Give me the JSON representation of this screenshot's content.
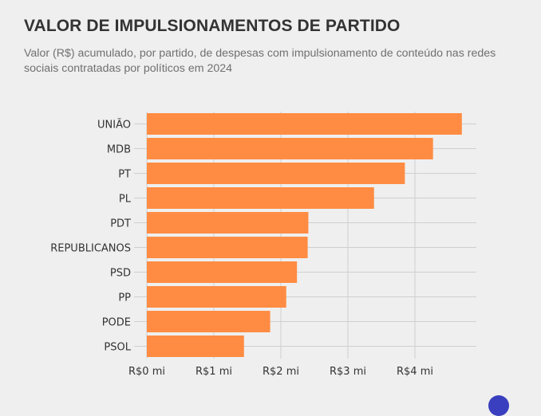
{
  "title": "VALOR DE IMPULSIONAMENTOS DE PARTIDO",
  "subtitle": "Valor (R$) acumulado, por partido, de despesas com impulsionamento de conteúdo nas redes sociais contratadas por políticos em 2024",
  "colors": {
    "bar": "#ff8c42",
    "grid": "#cfcfcf",
    "background": "#efefef",
    "text": "#333333"
  },
  "chart_data": {
    "type": "bar",
    "orientation": "horizontal",
    "title": "VALOR DE IMPULSIONAMENTOS DE PARTIDO",
    "categories": [
      "UNIÃO",
      "MDB",
      "PT",
      "PL",
      "PDT",
      "REPUBLICANOS",
      "PSD",
      "PP",
      "PODE",
      "PSOL"
    ],
    "values": [
      4.7,
      4.27,
      3.85,
      3.39,
      2.41,
      2.4,
      2.24,
      2.08,
      1.84,
      1.45
    ],
    "unit": "R$ milhões",
    "xlim": [
      0,
      5
    ],
    "ticks": [
      0,
      1,
      2,
      3,
      4
    ],
    "tick_labels": [
      "R$0 mi",
      "R$1 mi",
      "R$2 mi",
      "R$3 mi",
      "R$4 mi"
    ],
    "grid": true,
    "legend": "none"
  }
}
